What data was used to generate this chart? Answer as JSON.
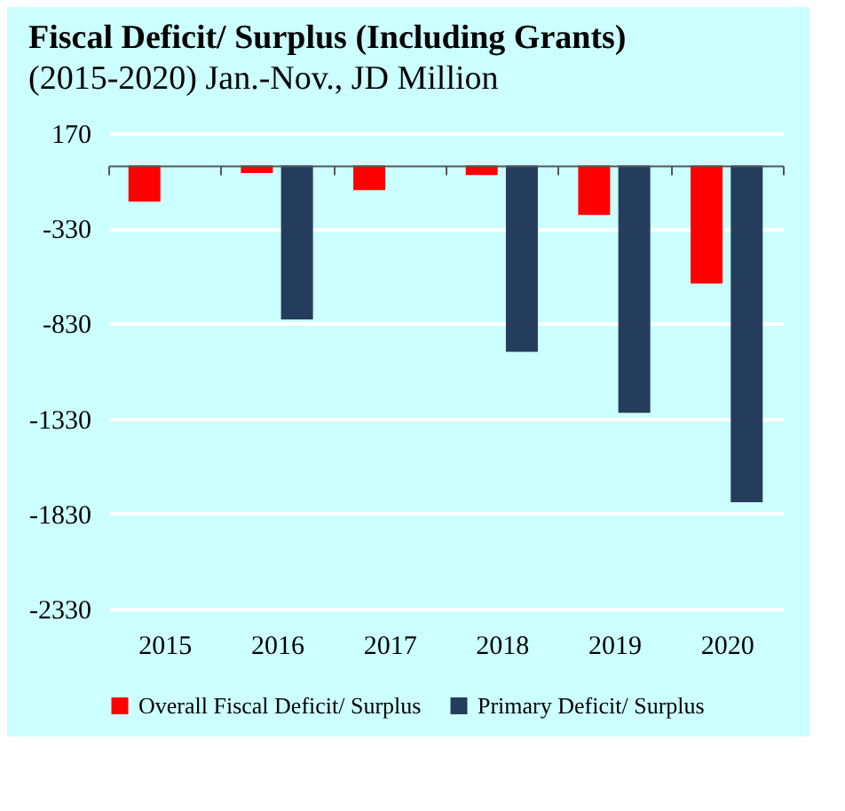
{
  "chart_data": {
    "type": "bar",
    "title": "Fiscal Deficit/ Surplus (Including Grants)",
    "subtitle": "(2015-2020) Jan.-Nov., JD Million",
    "categories": [
      "2015",
      "2016",
      "2017",
      "2018",
      "2019",
      "2020"
    ],
    "series": [
      {
        "name": "Overall Fiscal Deficit/ Surplus",
        "color": "#ff0000",
        "values": [
          -190,
          -40,
          -130,
          -50,
          -260,
          -620
        ]
      },
      {
        "name": "Primary Deficit/ Surplus",
        "color": "#253d5c",
        "values": [
          null,
          -810,
          null,
          -980,
          -1300,
          -1770
        ]
      }
    ],
    "ylim": [
      -2330,
      170
    ],
    "yticks": [
      170,
      -330,
      -830,
      -1330,
      -1830,
      -2330
    ],
    "grid": "y",
    "legend": "bottom"
  }
}
